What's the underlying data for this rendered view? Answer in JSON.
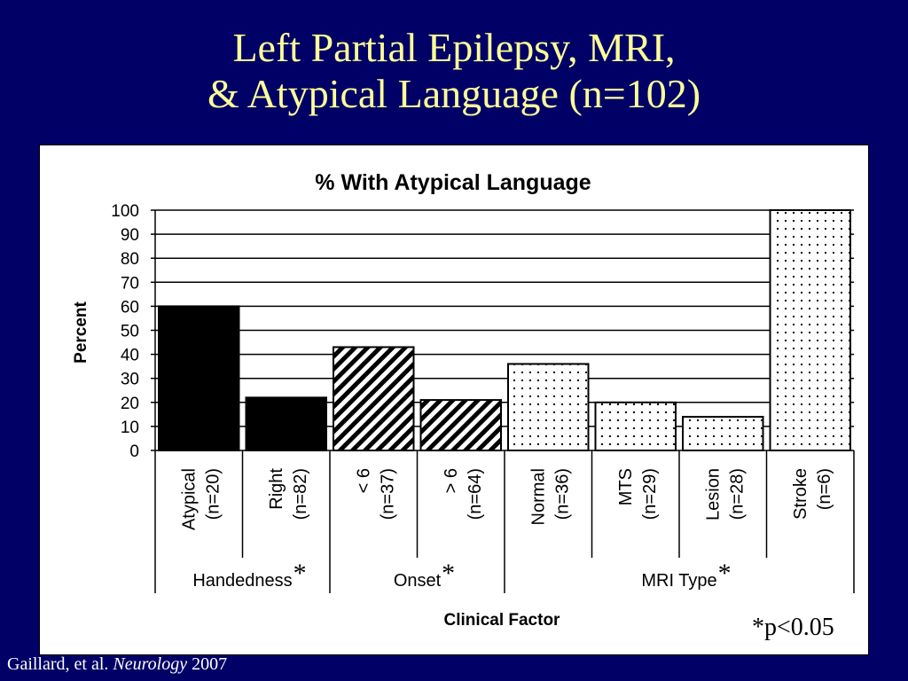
{
  "slide": {
    "title_line1": "Left Partial Epilepsy, MRI,",
    "title_line2": "& Atypical Language (n=102)"
  },
  "footer": {
    "authors": "Gaillard, et al. ",
    "journal": "Neurology",
    "year": " 2007"
  },
  "significance_note": "*p<0.05",
  "chart_data": {
    "type": "bar",
    "title": "% With Atypical Language",
    "ylabel": "Percent",
    "xlabel": "Clinical Factor",
    "ylim": [
      0,
      100
    ],
    "yticks": [
      0,
      10,
      20,
      30,
      40,
      50,
      60,
      70,
      80,
      90,
      100
    ],
    "grid": true,
    "categories": [
      {
        "name": "Atypical",
        "n": "(n=20)",
        "value": 60,
        "group": "Handedness",
        "fill": "solid"
      },
      {
        "name": "Right",
        "n": "(n=82)",
        "value": 22,
        "group": "Handedness",
        "fill": "solid"
      },
      {
        "name": "< 6",
        "n": "(n=37)",
        "value": 43,
        "group": "Onset",
        "fill": "diagonal"
      },
      {
        "name": "> 6",
        "n": "(n=64)",
        "value": 21,
        "group": "Onset",
        "fill": "diagonal"
      },
      {
        "name": "Normal",
        "n": "(n=36)",
        "value": 36,
        "group": "MRI Type",
        "fill": "dots"
      },
      {
        "name": "MTS",
        "n": "(n=29)",
        "value": 20,
        "group": "MRI Type",
        "fill": "dots"
      },
      {
        "name": "Lesion",
        "n": "(n=28)",
        "value": 14,
        "group": "MRI Type",
        "fill": "dots"
      },
      {
        "name": "Stroke",
        "n": "(n=6)",
        "value": 100,
        "group": "MRI Type",
        "fill": "dots"
      }
    ],
    "groups": [
      {
        "label": "Handedness",
        "marker": "*"
      },
      {
        "label": "Onset",
        "marker": "*"
      },
      {
        "label": "MRI Type",
        "marker": "*"
      }
    ],
    "colors": {
      "bar_solid": "#000000",
      "bar_pattern": "#000000",
      "grid": "#000000"
    }
  }
}
